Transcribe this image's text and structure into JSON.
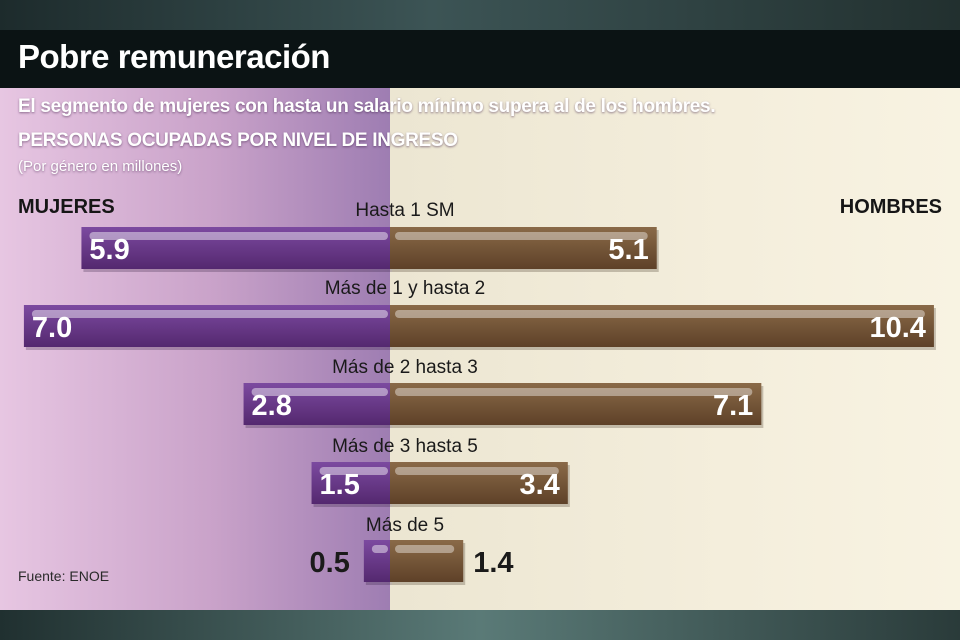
{
  "title": "Pobre remuneración",
  "subtitle": "El segmento de mujeres con hasta un salario mínimo supera al de los hombres.",
  "source": "Fuente: ENOE",
  "colors": {
    "mujeres": "#6a3a8e",
    "hombres": "#7a5a3a",
    "title_bar": "#0b1314"
  },
  "chart_data": {
    "type": "bar",
    "orientation": "horizontal-diverging",
    "title": "PERSONAS OCUPADAS POR NIVEL DE INGRESO",
    "units": "(Por género en millones)",
    "left_label": "MUJERES",
    "right_label": "HOMBRES",
    "categories": [
      "Hasta 1 SM",
      "Más de 1 y hasta 2",
      "Más de 2 hasta 3",
      "Más de 3 hasta 5",
      "Más de 5"
    ],
    "series": [
      {
        "name": "MUJERES",
        "values": [
          5.9,
          7.0,
          2.8,
          1.5,
          0.5
        ],
        "labels": [
          "5.9",
          "7.0",
          "2.8",
          "1.5",
          "0.5"
        ]
      },
      {
        "name": "HOMBRES",
        "values": [
          5.1,
          10.4,
          7.1,
          3.4,
          1.4
        ],
        "labels": [
          "5.1",
          "10.4",
          "7.1",
          "3.4",
          "1.4"
        ]
      }
    ],
    "grid": false,
    "legend": "top"
  }
}
